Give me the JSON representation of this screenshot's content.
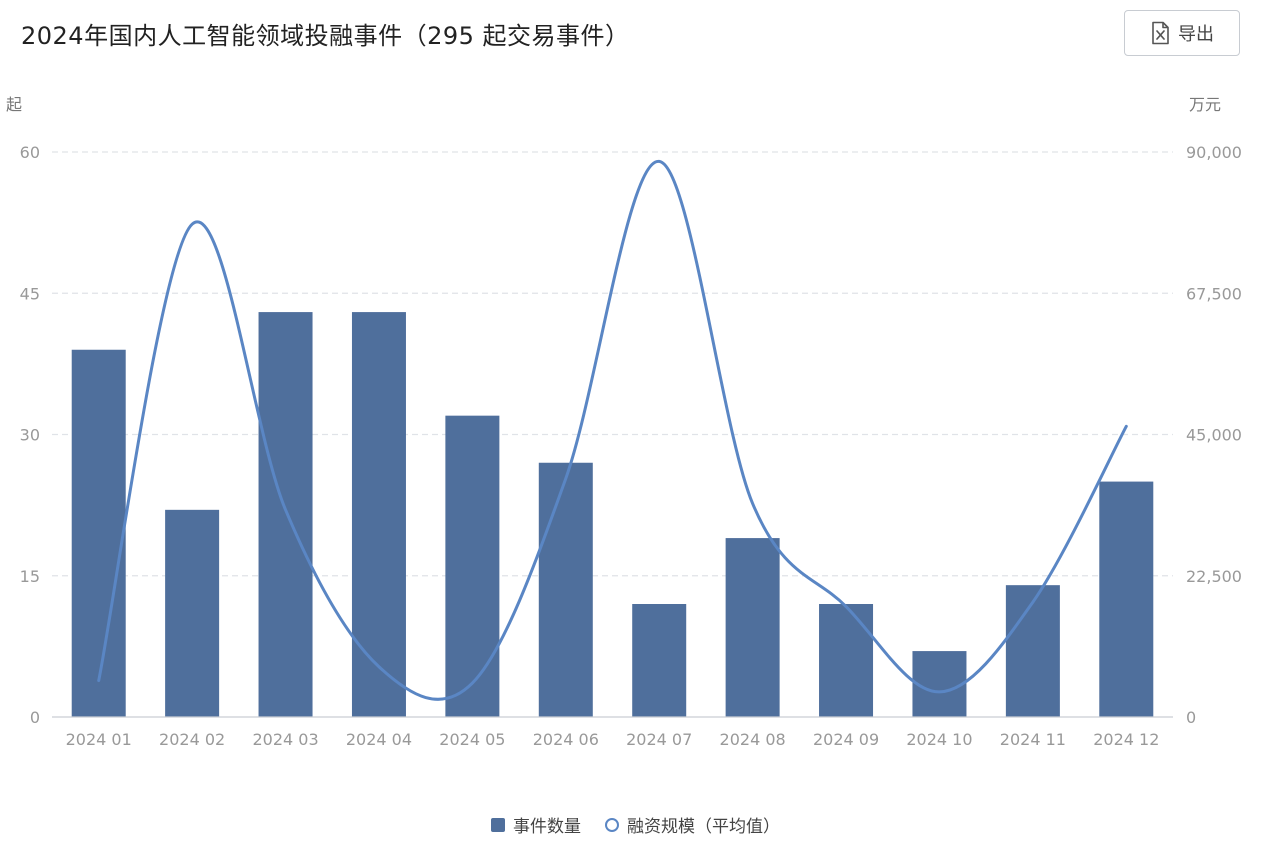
{
  "header": {
    "title": "2024年国内人工智能领域投融事件（295 起交易事件）",
    "export_label": "导出",
    "export_icon": "excel-file-icon"
  },
  "colors": {
    "bar": "#4f6f9c",
    "line": "#5a86c4",
    "grid": "#e0e3e8",
    "axis": "#c9cdd4"
  },
  "chart_data": {
    "type": "bar",
    "title": "2024年国内人工智能领域投融事件（295 起交易事件）",
    "categories": [
      "2024 01",
      "2024 02",
      "2024 03",
      "2024 04",
      "2024 05",
      "2024 06",
      "2024 07",
      "2024 08",
      "2024 09",
      "2024 10",
      "2024 11",
      "2024 12"
    ],
    "y_left": {
      "unit": "起",
      "range": [
        0,
        60
      ],
      "ticks": [
        "0",
        "15",
        "30",
        "45",
        "60"
      ]
    },
    "y_right": {
      "unit": "万元",
      "range": [
        0,
        90000
      ],
      "ticks": [
        "0",
        "22,500",
        "45,000",
        "67,500",
        "90,000"
      ]
    },
    "grid": true,
    "legend_position": "bottom",
    "series": [
      {
        "name": "事件数量",
        "type": "bar",
        "axis": "left",
        "values": [
          39,
          22,
          43,
          43,
          32,
          27,
          12,
          19,
          12,
          7,
          14,
          25
        ]
      },
      {
        "name": "融资规模（平均值）",
        "type": "line",
        "axis": "right",
        "smooth": true,
        "values": [
          5800,
          78500,
          33000,
          8000,
          5400,
          38000,
          88500,
          34000,
          17600,
          4000,
          18300,
          46300
        ]
      }
    ]
  }
}
